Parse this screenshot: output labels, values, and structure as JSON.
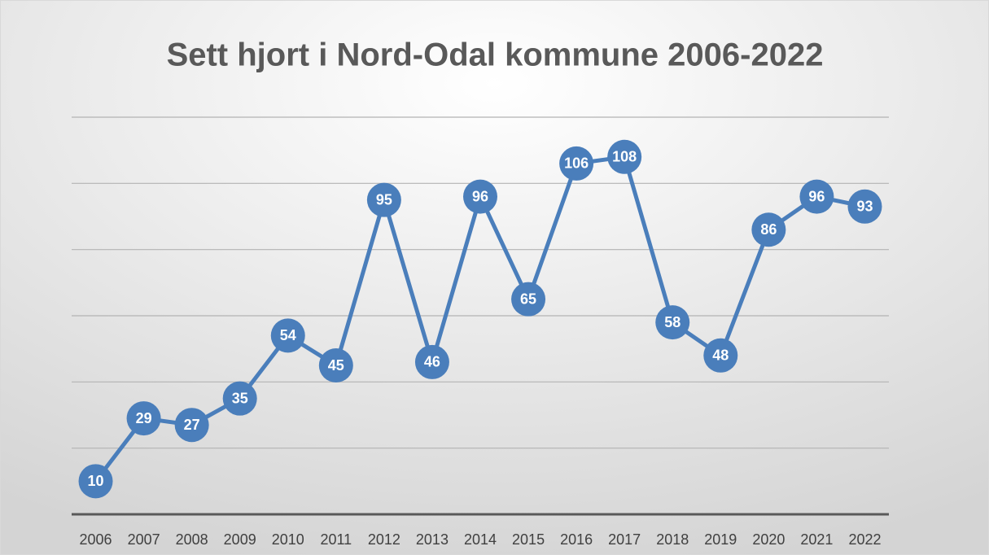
{
  "chart_data": {
    "type": "line",
    "title": "Sett hjort i Nord-Odal kommune 2006-2022",
    "categories": [
      "2006",
      "2007",
      "2008",
      "2009",
      "2010",
      "2011",
      "2012",
      "2013",
      "2014",
      "2015",
      "2016",
      "2017",
      "2018",
      "2019",
      "2020",
      "2021",
      "2022"
    ],
    "values": [
      10,
      29,
      27,
      35,
      54,
      45,
      95,
      46,
      96,
      65,
      106,
      108,
      58,
      48,
      86,
      96,
      93
    ],
    "color": "#4a7ebb",
    "ylim": [
      0,
      120
    ],
    "yticks": [
      0,
      20,
      40,
      60,
      80,
      100,
      120
    ],
    "grid": true
  }
}
